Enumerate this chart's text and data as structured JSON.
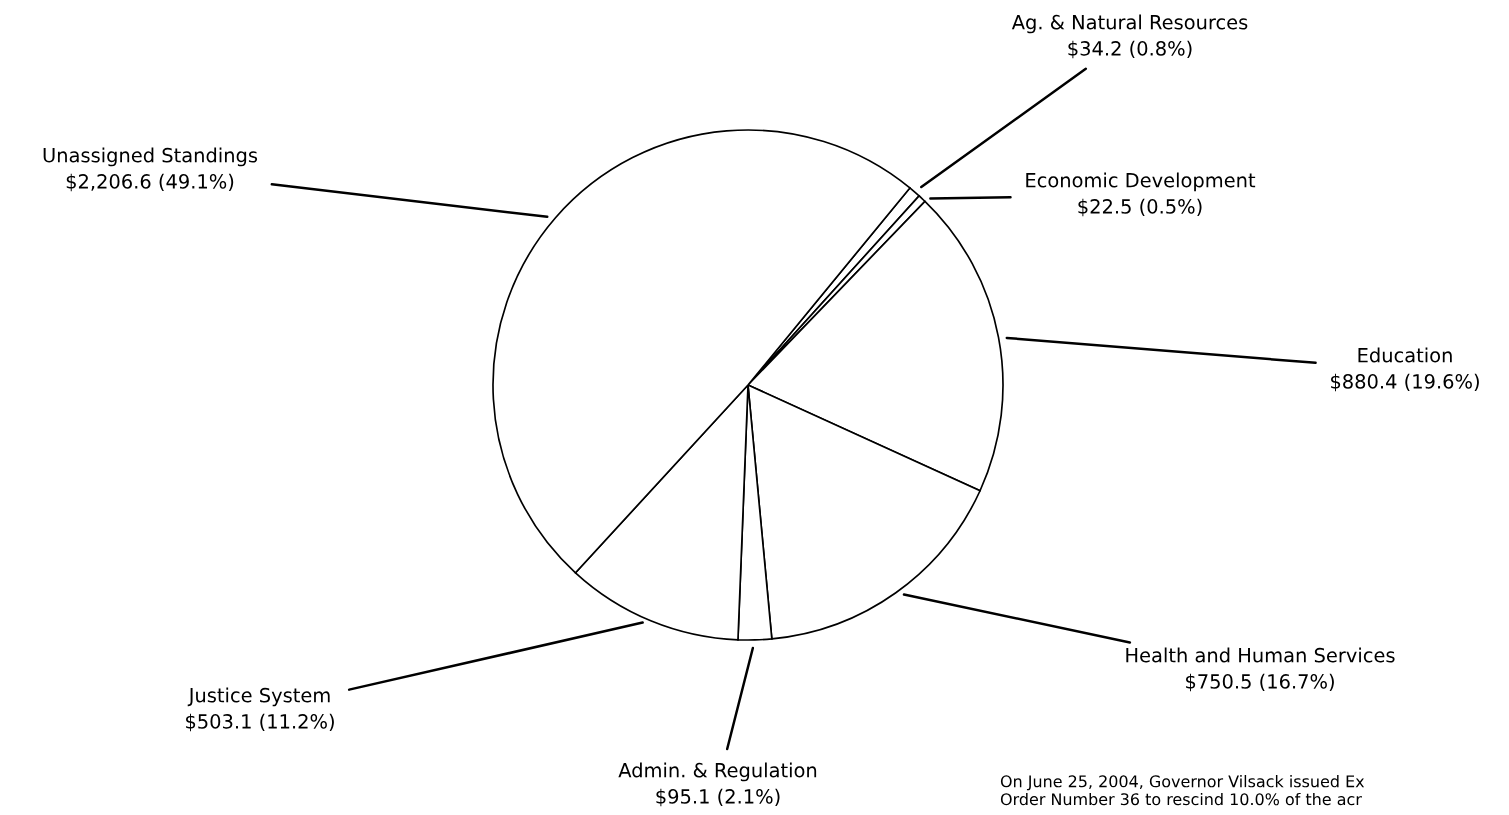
{
  "chart_data": {
    "type": "pie",
    "categories": [
      "Ag. & Natural Resources",
      "Economic Development",
      "Education",
      "Health and Human Services",
      "Admin. & Regulation",
      "Justice System",
      "Unassigned Standings"
    ],
    "values": [
      34.2,
      22.5,
      880.4,
      750.5,
      95.1,
      503.1,
      2206.6
    ],
    "value_labels": [
      "$34.2 (0.8%)",
      "$22.5 (0.5%)",
      "$880.4 (19.6%)",
      "$750.5 (16.7%)",
      "$95.1 (2.1%)",
      "$503.1 (11.2%)",
      "$2,206.6 (49.1%)"
    ],
    "colors": [
      "#ffffff",
      "#ffffff",
      "#ffffff",
      "#ffffff",
      "#ffffff",
      "#ffffff",
      "#ffffff"
    ],
    "annotations": [
      "On June 25, 2004, Governor Vilsack issued Ex\nOrder Number 36 to rescind 10.0% of the acr"
    ]
  }
}
